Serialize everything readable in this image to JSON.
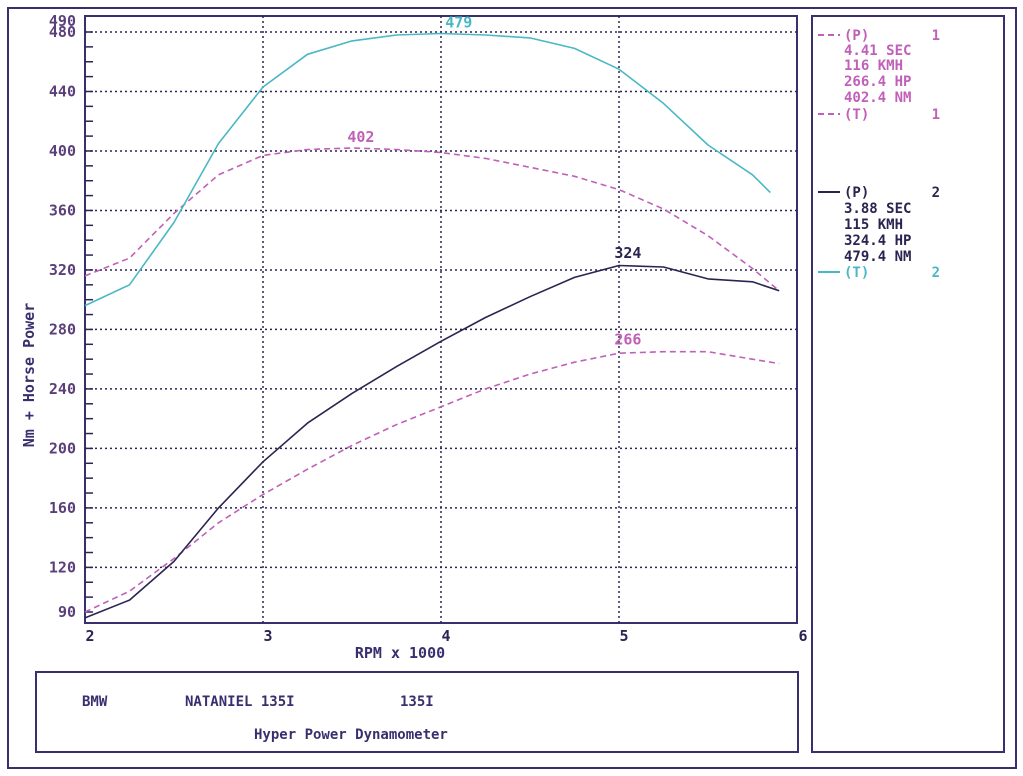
{
  "chart_data": {
    "type": "line",
    "xlabel": "RPM x 1000",
    "ylabel": "Nm + Horse Power",
    "xlim": [
      2,
      6
    ],
    "ylim": [
      85,
      490
    ],
    "x_ticks": [
      "2",
      "3",
      "4",
      "5",
      "6"
    ],
    "y_ticks": [
      90,
      120,
      160,
      200,
      240,
      280,
      320,
      360,
      400,
      440,
      480,
      490
    ],
    "grid": true,
    "colors": {
      "run1": "#c060b8",
      "run2_power": "#2a2550",
      "run2_torque": "#4ab8c4",
      "frame": "#3a2f6e",
      "ticks": "#5a3f7a"
    },
    "series": [
      {
        "name": "(T) 1",
        "style": "dashed",
        "color": "#c060b8",
        "peak_label": "402",
        "peak": [
          3.55,
          402
        ],
        "x": [
          2.0,
          2.25,
          2.5,
          2.75,
          3.0,
          3.25,
          3.5,
          3.75,
          4.0,
          4.25,
          4.5,
          4.75,
          5.0,
          5.25,
          5.5,
          5.75,
          5.9
        ],
        "y": [
          316,
          328,
          358,
          384,
          397,
          401,
          402,
          401,
          399,
          395,
          389,
          383,
          374,
          361,
          343,
          321,
          306
        ]
      },
      {
        "name": "(P) 1",
        "style": "dashed",
        "color": "#c060b8",
        "peak_label": "266",
        "peak": [
          5.05,
          266
        ],
        "x": [
          2.0,
          2.25,
          2.5,
          2.75,
          3.0,
          3.25,
          3.5,
          3.75,
          4.0,
          4.25,
          4.5,
          4.75,
          5.0,
          5.25,
          5.5,
          5.75,
          5.9
        ],
        "y": [
          90,
          104,
          126,
          150,
          169,
          186,
          202,
          216,
          228,
          240,
          250,
          258,
          264,
          265,
          265,
          260,
          257
        ]
      },
      {
        "name": "(T) 2",
        "style": "solid",
        "color": "#4ab8c4",
        "peak_label": "479",
        "peak": [
          4.1,
          479
        ],
        "x": [
          2.0,
          2.25,
          2.5,
          2.75,
          3.0,
          3.25,
          3.5,
          3.75,
          4.0,
          4.25,
          4.5,
          4.75,
          5.0,
          5.25,
          5.5,
          5.75,
          5.85
        ],
        "y": [
          296,
          310,
          352,
          405,
          443,
          465,
          474,
          478,
          479,
          478,
          476,
          469,
          455,
          432,
          404,
          384,
          372
        ]
      },
      {
        "name": "(P) 2",
        "style": "solid",
        "color": "#2a2550",
        "peak_label": "324",
        "peak": [
          5.05,
          324
        ],
        "x": [
          2.0,
          2.25,
          2.5,
          2.75,
          3.0,
          3.25,
          3.5,
          3.75,
          4.0,
          4.25,
          4.5,
          4.75,
          5.0,
          5.25,
          5.5,
          5.75,
          5.9
        ],
        "y": [
          86,
          98,
          124,
          160,
          191,
          217,
          237,
          255,
          272,
          288,
          302,
          315,
          323,
          322,
          314,
          312,
          306
        ]
      }
    ]
  },
  "legend": {
    "run1": {
      "line1": "(P)",
      "num1": "1",
      "sec": "4.41 SEC",
      "kmh": "116 KMH",
      "hp": "266.4 HP",
      "nm": "402.4 NM",
      "line2": "(T)",
      "num2": "1"
    },
    "run2": {
      "line1": "(P)",
      "num1": "2",
      "sec": "3.88 SEC",
      "kmh": "115 KMH",
      "hp": "324.4 HP",
      "nm": "479.4 NM",
      "line2": "(T)",
      "num2": "2"
    }
  },
  "footer": {
    "make": "BMW",
    "owner": "NATANIEL 135I",
    "model": "135I",
    "dyno": "Hyper Power Dynamometer"
  }
}
